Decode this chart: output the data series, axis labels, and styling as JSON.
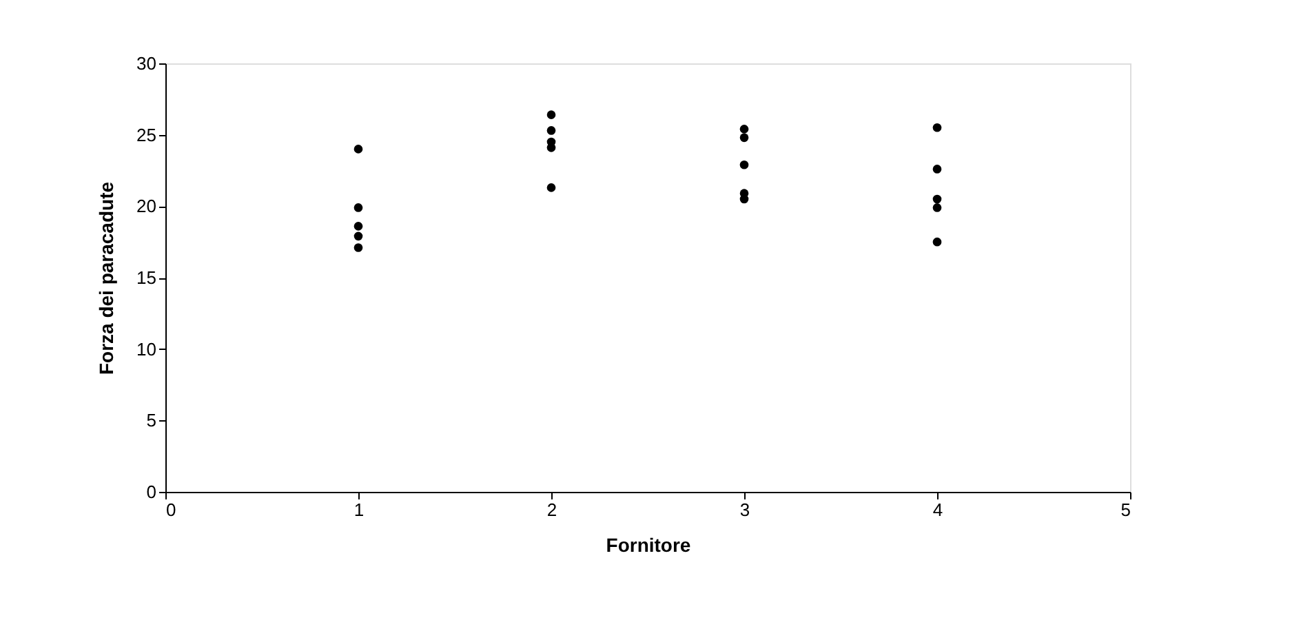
{
  "chart_data": {
    "type": "scatter",
    "xlabel": "Fornitore",
    "ylabel": "Forza dei paracadute",
    "x": [
      1,
      1,
      1,
      1,
      1,
      2,
      2,
      2,
      2,
      2,
      3,
      3,
      3,
      3,
      3,
      4,
      4,
      4,
      4,
      4
    ],
    "series": [
      {
        "color": "#000000",
        "values": [
          24.0,
          19.9,
          18.6,
          17.9,
          17.1,
          26.4,
          25.3,
          24.5,
          24.1,
          21.3,
          25.4,
          24.8,
          22.9,
          20.9,
          20.5,
          25.5,
          22.6,
          20.5,
          19.9,
          17.5
        ]
      }
    ],
    "xlim": [
      0,
      5
    ],
    "xticks": [
      0,
      1,
      2,
      3,
      4,
      5
    ],
    "ylim": [
      0,
      30
    ],
    "yticks": [
      0,
      5,
      10,
      15,
      20,
      25,
      30
    ],
    "marker": "circle",
    "grid": false,
    "legend": false
  }
}
